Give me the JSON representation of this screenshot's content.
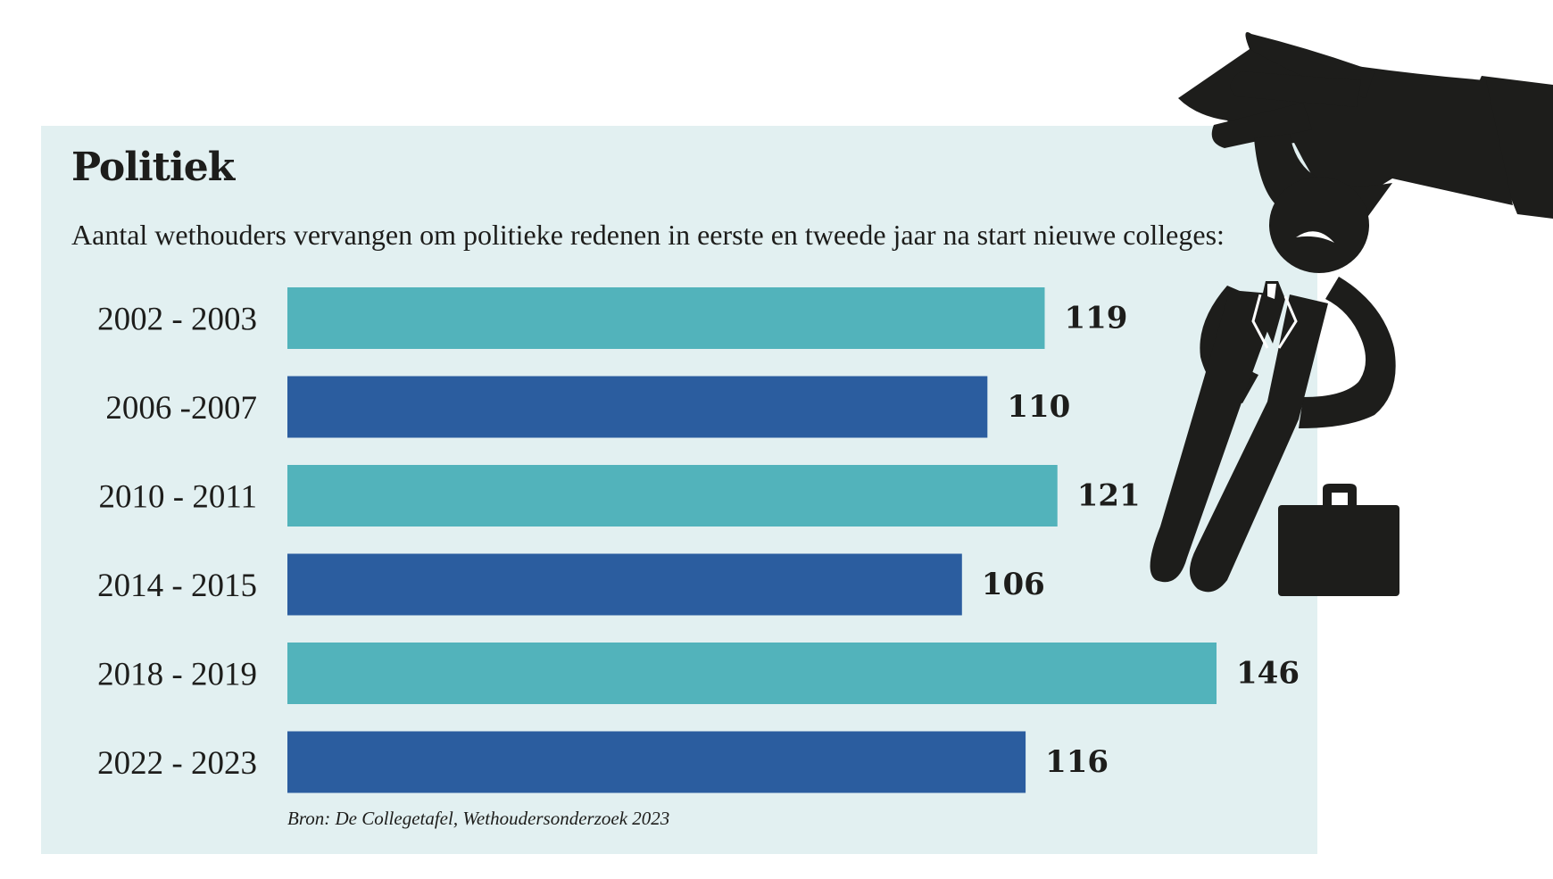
{
  "header": {
    "title": "Politiek",
    "subtitle": "Aantal wethouders vervangen om politieke redenen in eerste en tweede jaar na start nieuwe colleges:"
  },
  "footer": {
    "source": "Bron: De Collegetafel, Wethoudersonderzoek 2023"
  },
  "colors": {
    "panel": "#e2f0f1",
    "bar_light": "#52b3bb",
    "bar_dark": "#2b5d9f",
    "ink": "#1d1d1b"
  },
  "illustration": {
    "icon": "hand-dropping-businessman-icon",
    "secondary_icon": "briefcase-icon"
  },
  "chart_data": {
    "type": "bar",
    "orientation": "horizontal",
    "title": "Politiek",
    "subtitle": "Aantal wethouders vervangen om politieke redenen in eerste en tweede jaar na start nieuwe colleges:",
    "categories": [
      "2002 - 2003",
      "2006 -2007",
      "2010 - 2011",
      "2014 - 2015",
      "2018 - 2019",
      "2022 - 2023"
    ],
    "values": [
      119,
      110,
      121,
      106,
      146,
      116
    ],
    "xlim": [
      0,
      146
    ],
    "grid": false,
    "legend": "none",
    "xlabel": "",
    "ylabel": ""
  }
}
